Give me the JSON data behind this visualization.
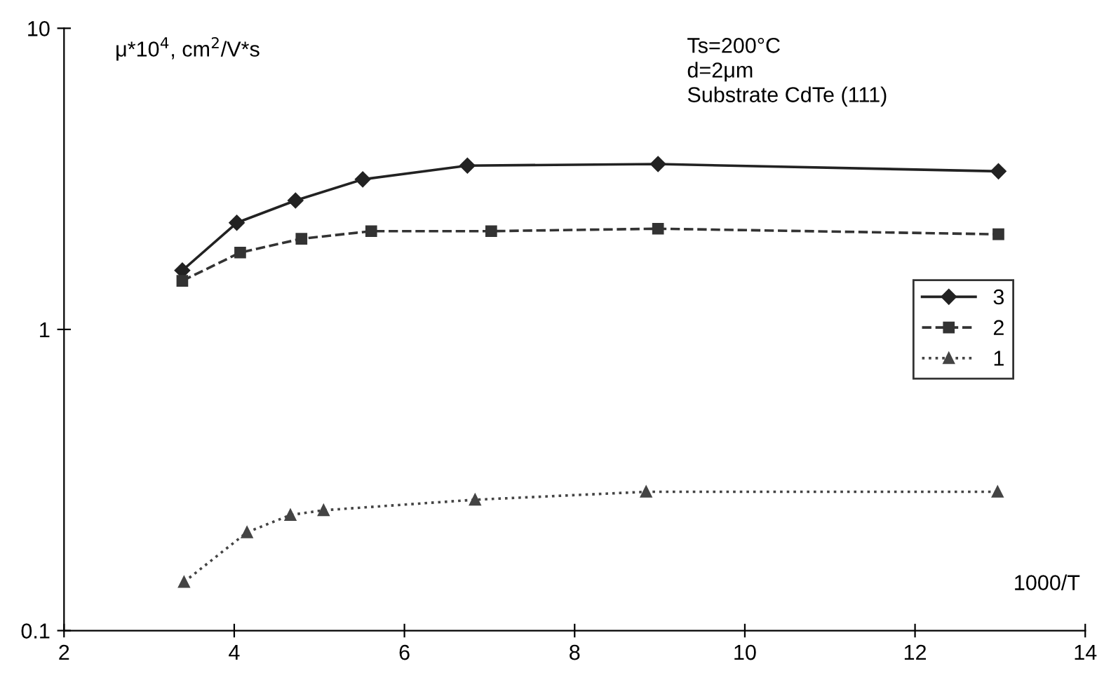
{
  "chart_data": {
    "type": "line",
    "ylabel": "μ*10$^{4}$, cm$^{2}$/V*s",
    "xlabel": "1000/T",
    "annotations": [
      "Ts=200°C\nd=2μm\nSubstrate CdTe (111)"
    ],
    "xlim": [
      2,
      14
    ],
    "xticks": [
      2,
      4,
      6,
      8,
      10,
      12,
      14
    ],
    "ylim": [
      0.1,
      10
    ],
    "yticks": [
      0.1,
      1,
      10
    ],
    "log": "y",
    "grid": false,
    "legend": "right",
    "series": [
      {
        "name": "3",
        "color": "#222222",
        "marker": "diamond",
        "line_style": "solid",
        "x": [
          3.39,
          4.03,
          4.72,
          5.51,
          6.74,
          8.98,
          12.98
        ],
        "values": [
          1.57,
          2.26,
          2.68,
          3.15,
          3.5,
          3.54,
          3.35
        ]
      },
      {
        "name": "2",
        "color": "#333333",
        "marker": "square",
        "line_style": "dashed",
        "x": [
          3.39,
          4.07,
          4.79,
          5.61,
          7.02,
          8.98,
          12.98
        ],
        "values": [
          1.45,
          1.8,
          2.0,
          2.12,
          2.12,
          2.16,
          2.07
        ]
      },
      {
        "name": "1",
        "color": "#444444",
        "marker": "triangle",
        "line_style": "dotted",
        "x": [
          3.41,
          4.15,
          4.66,
          5.05,
          6.83,
          8.84,
          12.97
        ],
        "values": [
          0.145,
          0.212,
          0.242,
          0.251,
          0.272,
          0.289,
          0.289
        ]
      }
    ]
  }
}
